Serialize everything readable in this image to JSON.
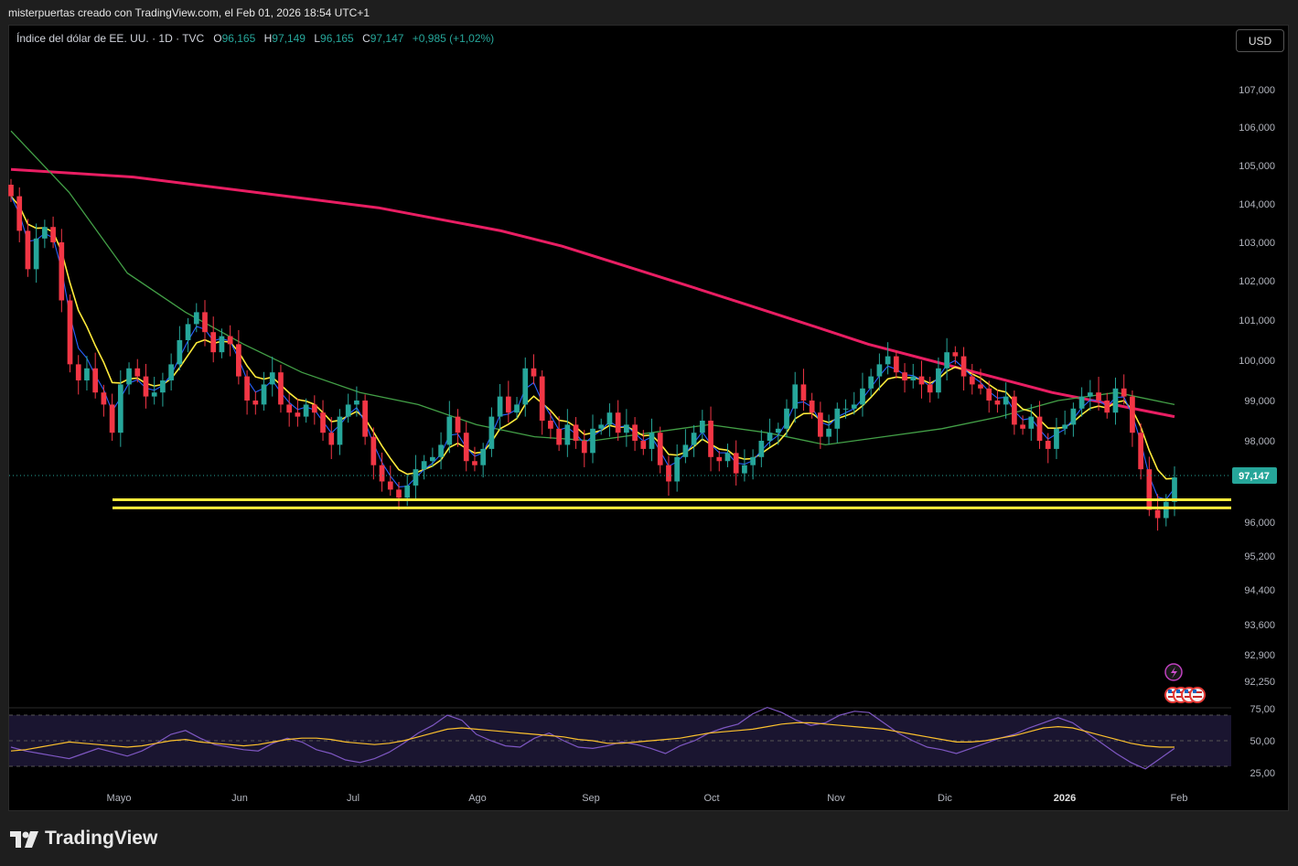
{
  "caption": "misterpuertas creado con TradingView.com, el Feb 01, 2026 18:54 UTC+1",
  "legend": {
    "title": "Índice del dólar de EE. UU. · 1D · TVC",
    "open_label": "O",
    "open": "96,165",
    "high_label": "H",
    "high": "97,149",
    "low_label": "L",
    "low": "96,165",
    "close_label": "C",
    "close": "97,147",
    "change": "+0,985 (+1,02%)"
  },
  "currency_button": "USD",
  "brand": "TradingView",
  "colors": {
    "up": "#26a69a",
    "down": "#f23645",
    "ma200": "#e91e63",
    "ma50": "#43a047",
    "ema20": "#ffeb3b",
    "ema9": "#2962ff",
    "support": "#ffeb3b",
    "rsi": "#7e57c2",
    "rsi_ma": "#fbc02d"
  },
  "icons": [
    "lightning-icon",
    "us-flag-icon"
  ],
  "chart_data": [
    {
      "type": "candlestick",
      "title": "Índice del dólar de EE. UU. · 1D · TVC",
      "price_axis_labels": [
        "107,000",
        "106,000",
        "105,000",
        "104,000",
        "103,000",
        "102,000",
        "101,000",
        "100,000",
        "99,000",
        "98,000",
        "96,000",
        "95,200",
        "94,400",
        "93,600",
        "92,900",
        "92,250"
      ],
      "x_axis_labels": [
        "Mayo",
        "Jun",
        "Jul",
        "Ago",
        "Sep",
        "Oct",
        "Nov",
        "Dic",
        "2026",
        "Feb"
      ],
      "last_price": "97,147",
      "x_range": [
        "2025-04-22",
        "2026-02-01"
      ],
      "close": [
        104.2,
        103.3,
        102.3,
        103.1,
        103.4,
        103.0,
        101.5,
        99.9,
        99.5,
        99.8,
        99.2,
        98.9,
        98.2,
        99.4,
        99.8,
        99.6,
        99.1,
        99.2,
        99.5,
        99.9,
        100.5,
        100.9,
        101.2,
        100.7,
        100.2,
        100.6,
        100.4,
        99.6,
        99.0,
        98.9,
        99.4,
        99.7,
        98.9,
        98.7,
        98.6,
        98.9,
        98.7,
        98.2,
        97.9,
        98.6,
        98.9,
        99.0,
        98.1,
        97.4,
        97.0,
        96.8,
        96.6,
        96.9,
        97.3,
        97.5,
        97.6,
        97.9,
        98.6,
        98.2,
        97.5,
        97.4,
        97.8,
        98.6,
        99.1,
        98.7,
        98.9,
        99.8,
        99.6,
        98.5,
        98.3,
        97.9,
        98.4,
        98.0,
        97.7,
        98.3,
        98.4,
        98.7,
        98.2,
        98.4,
        98.0,
        97.8,
        98.2,
        97.4,
        97.0,
        97.6,
        97.9,
        98.2,
        98.5,
        97.6,
        97.5,
        97.7,
        97.2,
        97.4,
        97.6,
        98.0,
        98.2,
        98.3,
        98.8,
        99.4,
        99.0,
        98.7,
        98.1,
        98.3,
        98.8,
        98.8,
        98.9,
        99.3,
        99.6,
        99.9,
        100.1,
        99.7,
        99.5,
        99.6,
        99.4,
        99.2,
        99.8,
        100.2,
        100.1,
        99.6,
        99.4,
        99.3,
        99.0,
        98.9,
        99.1,
        98.4,
        98.3,
        98.6,
        98.0,
        97.8,
        98.3,
        98.4,
        98.8,
        99.1,
        99.2,
        99.0,
        98.7,
        99.3,
        99.1,
        98.2,
        97.3,
        96.3,
        96.1,
        96.5,
        97.1
      ],
      "volume_visible": false,
      "ma200": {
        "name": "",
        "values": [
          104.9,
          104.8,
          104.7,
          104.5,
          104.3,
          104.1,
          103.9,
          103.6,
          103.3,
          102.9,
          102.4,
          101.9,
          101.4,
          100.9,
          100.4,
          100.0,
          99.6,
          99.2,
          98.9,
          98.6
        ]
      },
      "ma50": {
        "name": "",
        "values": [
          105.9,
          104.3,
          102.2,
          101.2,
          100.4,
          99.7,
          99.2,
          98.9,
          98.4,
          98.1,
          98.0,
          98.2,
          98.4,
          98.2,
          97.9,
          98.1,
          98.3,
          98.6,
          99.0,
          99.2,
          98.9
        ]
      },
      "support_levels": [
        96.55,
        96.35
      ],
      "last_support_zone": [
        96.35,
        96.55
      ]
    },
    {
      "type": "line",
      "title": "RSI",
      "y_axis_labels": [
        "75,00",
        "50,00",
        "25,00"
      ],
      "ylim": [
        20,
        80
      ],
      "series": [
        {
          "values": [
            45,
            42,
            40,
            38,
            36,
            40,
            44,
            41,
            38,
            42,
            48,
            55,
            58,
            52,
            47,
            45,
            43,
            42,
            48,
            52,
            49,
            43,
            40,
            35,
            33,
            36,
            41,
            48,
            56,
            62,
            70,
            66,
            55,
            50,
            46,
            45,
            52,
            56,
            50,
            45,
            44,
            46,
            49,
            47,
            44,
            40,
            46,
            50,
            56,
            60,
            63,
            71,
            76,
            72,
            66,
            62,
            64,
            70,
            73,
            72,
            64,
            56,
            50,
            45,
            43,
            40,
            44,
            48,
            52,
            55,
            60,
            64,
            68,
            64,
            56,
            48,
            40,
            33,
            28,
            36,
            44
          ]
        },
        {
          "values": [
            42,
            43,
            45,
            47,
            49,
            48,
            47,
            46,
            45,
            46,
            48,
            50,
            51,
            49,
            48,
            47,
            46,
            47,
            49,
            51,
            52,
            52,
            51,
            49,
            48,
            47,
            48,
            50,
            53,
            56,
            59,
            60,
            59,
            58,
            57,
            56,
            55,
            54,
            53,
            51,
            50,
            48,
            48,
            49,
            50,
            51,
            52,
            54,
            56,
            57,
            58,
            59,
            61,
            63,
            64,
            64,
            63,
            62,
            61,
            60,
            59,
            57,
            55,
            53,
            51,
            49,
            49,
            50,
            52,
            54,
            57,
            60,
            61,
            60,
            57,
            54,
            51,
            48,
            46,
            45,
            45
          ]
        }
      ],
      "reference_lines": [
        70,
        50,
        30
      ]
    }
  ]
}
